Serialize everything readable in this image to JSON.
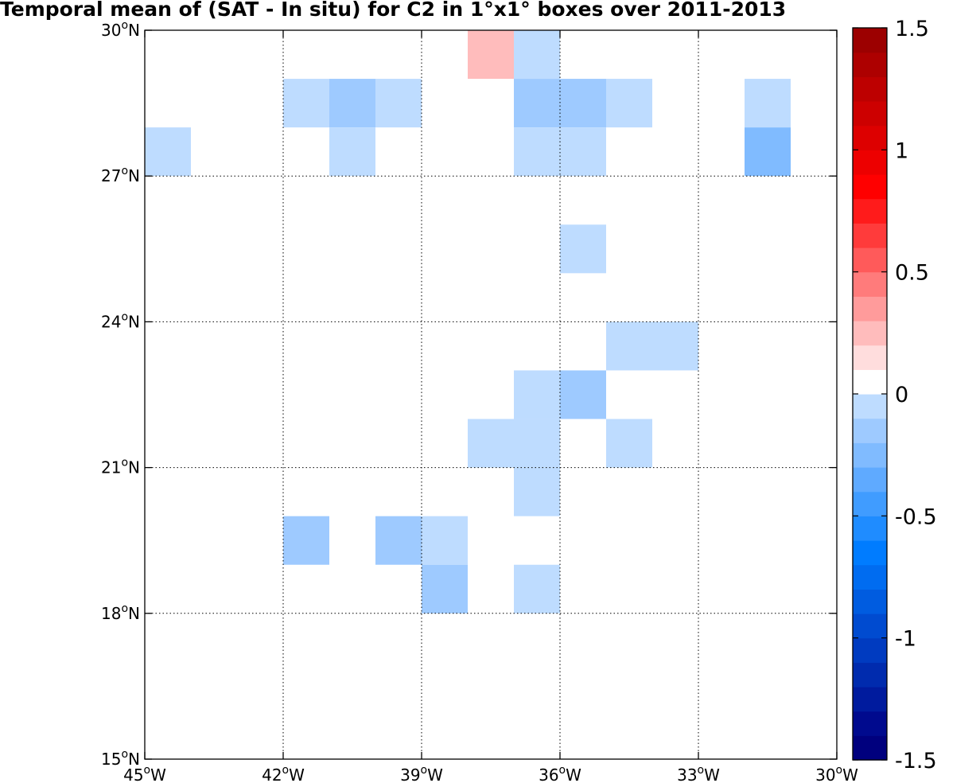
{
  "title": "Temporal mean of (SAT - In situ) for C2 in 1°x1° boxes over 2011-2013",
  "chart_data": {
    "type": "heatmap",
    "title": "Temporal mean of (SAT - In situ) for C2 in 1°x1° boxes over 2011-2013",
    "xlabel": "",
    "ylabel": "",
    "x_range_lon": [
      -45,
      -30
    ],
    "y_range_lat": [
      15,
      30
    ],
    "grid": true,
    "grid_step_deg": 3,
    "x_ticks": [
      {
        "lon": -45,
        "deg": "45",
        "hem": "W"
      },
      {
        "lon": -42,
        "deg": "42",
        "hem": "W"
      },
      {
        "lon": -39,
        "deg": "39",
        "hem": "W"
      },
      {
        "lon": -36,
        "deg": "36",
        "hem": "W"
      },
      {
        "lon": -33,
        "deg": "33",
        "hem": "W"
      },
      {
        "lon": -30,
        "deg": "30",
        "hem": "W"
      }
    ],
    "y_ticks": [
      {
        "lat": 15,
        "deg": "15",
        "hem": "N"
      },
      {
        "lat": 18,
        "deg": "18",
        "hem": "N"
      },
      {
        "lat": 21,
        "deg": "21",
        "hem": "N"
      },
      {
        "lat": 24,
        "deg": "24",
        "hem": "N"
      },
      {
        "lat": 27,
        "deg": "27",
        "hem": "N"
      },
      {
        "lat": 30,
        "deg": "30",
        "hem": "N"
      }
    ],
    "colorbar": {
      "range": [
        -1.5,
        1.5
      ],
      "step": 0.1,
      "placement": "right",
      "tick_values": [
        1.5,
        1,
        0.5,
        0,
        -0.5,
        -1,
        -1.5
      ],
      "tick_labels": [
        "1.5",
        "1",
        "0.5",
        "0",
        "-0.5",
        "-1",
        "-1.5"
      ],
      "colors_low_to_high": [
        "#00007e",
        "#000a8e",
        "#001b9e",
        "#002bae",
        "#003bc0",
        "#004bd0",
        "#005ce0",
        "#006cf0",
        "#007cff",
        "#1f8cff",
        "#409cff",
        "#5faaff",
        "#80bbff",
        "#9ecaff",
        "#bedcff",
        "#ffffff",
        "#ffdddd",
        "#ffbcbc",
        "#ff9b9b",
        "#ff7b7b",
        "#ff5a5a",
        "#ff3b3b",
        "#ff1b1b",
        "#ff0000",
        "#ed0000",
        "#dd0000",
        "#cd0000",
        "#bd0000",
        "#ad0000",
        "#9c0000"
      ]
    },
    "cells_lat_lon_value": [
      {
        "lon": -39,
        "lat": 29,
        "value": 0.1
      },
      {
        "lon": -38,
        "lat": 29,
        "value": 0.3
      },
      {
        "lon": -37,
        "lat": 29,
        "value": -0.1
      },
      {
        "lon": -42,
        "lat": 28,
        "value": -0.1
      },
      {
        "lon": -41,
        "lat": 28,
        "value": -0.2
      },
      {
        "lon": -40,
        "lat": 28,
        "value": -0.1
      },
      {
        "lon": -39,
        "lat": 28,
        "value": 0.1
      },
      {
        "lon": -37,
        "lat": 28,
        "value": -0.2
      },
      {
        "lon": -36,
        "lat": 28,
        "value": -0.2
      },
      {
        "lon": -35,
        "lat": 28,
        "value": -0.1
      },
      {
        "lon": -32,
        "lat": 28,
        "value": -0.1
      },
      {
        "lon": -45,
        "lat": 27,
        "value": -0.1
      },
      {
        "lon": -41,
        "lat": 27,
        "value": -0.1
      },
      {
        "lon": -39,
        "lat": 27,
        "value": 0.1
      },
      {
        "lon": -37,
        "lat": 27,
        "value": -0.1
      },
      {
        "lon": -36,
        "lat": 27,
        "value": -0.1
      },
      {
        "lon": -32,
        "lat": 27,
        "value": -0.3
      },
      {
        "lon": -36,
        "lat": 25,
        "value": -0.1
      },
      {
        "lon": -35,
        "lat": 23,
        "value": -0.1
      },
      {
        "lon": -34,
        "lat": 23,
        "value": -0.1
      },
      {
        "lon": -37,
        "lat": 22,
        "value": -0.1
      },
      {
        "lon": -36,
        "lat": 22,
        "value": -0.2
      },
      {
        "lon": -38,
        "lat": 21,
        "value": -0.1
      },
      {
        "lon": -37,
        "lat": 21,
        "value": -0.1
      },
      {
        "lon": -35,
        "lat": 21,
        "value": -0.1
      },
      {
        "lon": -45,
        "lat": 20,
        "value": 0.1
      },
      {
        "lon": -37,
        "lat": 20,
        "value": -0.1
      },
      {
        "lon": -42,
        "lat": 19,
        "value": -0.2
      },
      {
        "lon": -40,
        "lat": 19,
        "value": -0.2
      },
      {
        "lon": -39,
        "lat": 19,
        "value": -0.1
      },
      {
        "lon": -39,
        "lat": 18,
        "value": -0.2
      },
      {
        "lon": -37,
        "lat": 18,
        "value": -0.1
      }
    ]
  }
}
